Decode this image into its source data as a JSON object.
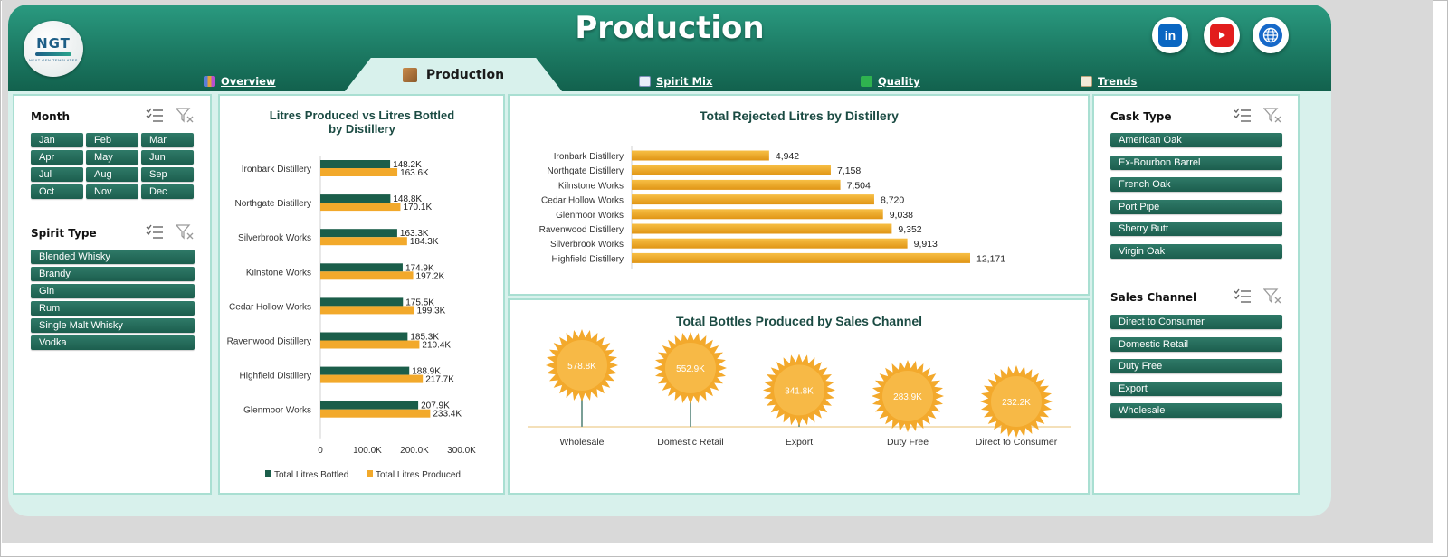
{
  "header": {
    "title": "Production",
    "logo": {
      "mark": "NGT",
      "tagline": "NEXT GEN TEMPLATES"
    },
    "social": [
      "linkedin-icon",
      "youtube-icon",
      "globe-icon"
    ]
  },
  "tabs": [
    {
      "label": "Overview",
      "icon": "bar-chart-icon",
      "active": false
    },
    {
      "label": "Production",
      "icon": "box-icon",
      "active": true
    },
    {
      "label": "Spirit Mix",
      "icon": "line-chart-icon",
      "active": false
    },
    {
      "label": "Quality",
      "icon": "checkbox-icon",
      "active": false
    },
    {
      "label": "Trends",
      "icon": "notepad-icon",
      "active": false
    }
  ],
  "slicers": {
    "month": {
      "title": "Month",
      "items": [
        "Jan",
        "Feb",
        "Mar",
        "Apr",
        "May",
        "Jun",
        "Jul",
        "Aug",
        "Sep",
        "Oct",
        "Nov",
        "Dec"
      ]
    },
    "spirit_type": {
      "title": "Spirit Type",
      "items": [
        "Blended Whisky",
        "Brandy",
        "Gin",
        "Rum",
        "Single Malt Whisky",
        "Vodka"
      ]
    },
    "cask_type": {
      "title": "Cask Type",
      "items": [
        "American Oak",
        "Ex-Bourbon Barrel",
        "French Oak",
        "Port Pipe",
        "Sherry Butt",
        "Virgin Oak"
      ]
    },
    "sales_channel": {
      "title": "Sales Channel",
      "items": [
        "Direct to Consumer",
        "Domestic Retail",
        "Duty Free",
        "Export",
        "Wholesale"
      ]
    }
  },
  "chart_data": [
    {
      "type": "bar",
      "orientation": "horizontal",
      "title": "Litres Produced vs Litres Bottled by Distillery",
      "categories": [
        "Ironbark Distillery",
        "Northgate Distillery",
        "Silverbrook Works",
        "Kilnstone Works",
        "Cedar Hollow Works",
        "Ravenwood Distillery",
        "Highfield Distillery",
        "Glenmoor Works"
      ],
      "series": [
        {
          "name": "Total Litres Bottled",
          "color": "#1b5e4a",
          "values": [
            148200,
            148800,
            163300,
            174900,
            175500,
            185300,
            188900,
            207900
          ],
          "labels": [
            "148.2K",
            "148.8K",
            "163.3K",
            "174.9K",
            "175.5K",
            "185.3K",
            "188.9K",
            "207.9K"
          ]
        },
        {
          "name": "Total Litres Produced",
          "color": "#f2a92b",
          "values": [
            163600,
            170100,
            184300,
            197200,
            199300,
            210400,
            217700,
            233400
          ],
          "labels": [
            "163.6K",
            "170.1K",
            "184.3K",
            "197.2K",
            "199.3K",
            "210.4K",
            "217.7K",
            "233.4K"
          ]
        }
      ],
      "xlim": [
        0,
        300000
      ],
      "xticks": [
        "0",
        "100.0K",
        "200.0K",
        "300.0K"
      ],
      "legend": "bottom"
    },
    {
      "type": "bar",
      "orientation": "horizontal",
      "title": "Total Rejected Litres by Distillery",
      "categories": [
        "Ironbark Distillery",
        "Northgate Distillery",
        "Kilnstone Works",
        "Cedar Hollow Works",
        "Glenmoor Works",
        "Ravenwood Distillery",
        "Silverbrook Works",
        "Highfield Distillery"
      ],
      "values": [
        4942,
        7158,
        7504,
        8720,
        9038,
        9352,
        9913,
        12171
      ],
      "labels": [
        "4,942",
        "7,158",
        "7,504",
        "8,720",
        "9,038",
        "9,352",
        "9,913",
        "12,171"
      ],
      "color": "#f2a92b",
      "xlim": [
        0,
        12171
      ]
    },
    {
      "type": "lollipop",
      "title": "Total Bottles Produced by Sales Channel",
      "categories": [
        "Wholesale",
        "Domestic Retail",
        "Export",
        "Duty Free",
        "Direct to Consumer"
      ],
      "values": [
        578800,
        552900,
        341800,
        283900,
        232200
      ],
      "labels": [
        "578.8K",
        "552.9K",
        "341.8K",
        "283.9K",
        "232.2K"
      ],
      "color": "#f5b942"
    }
  ]
}
